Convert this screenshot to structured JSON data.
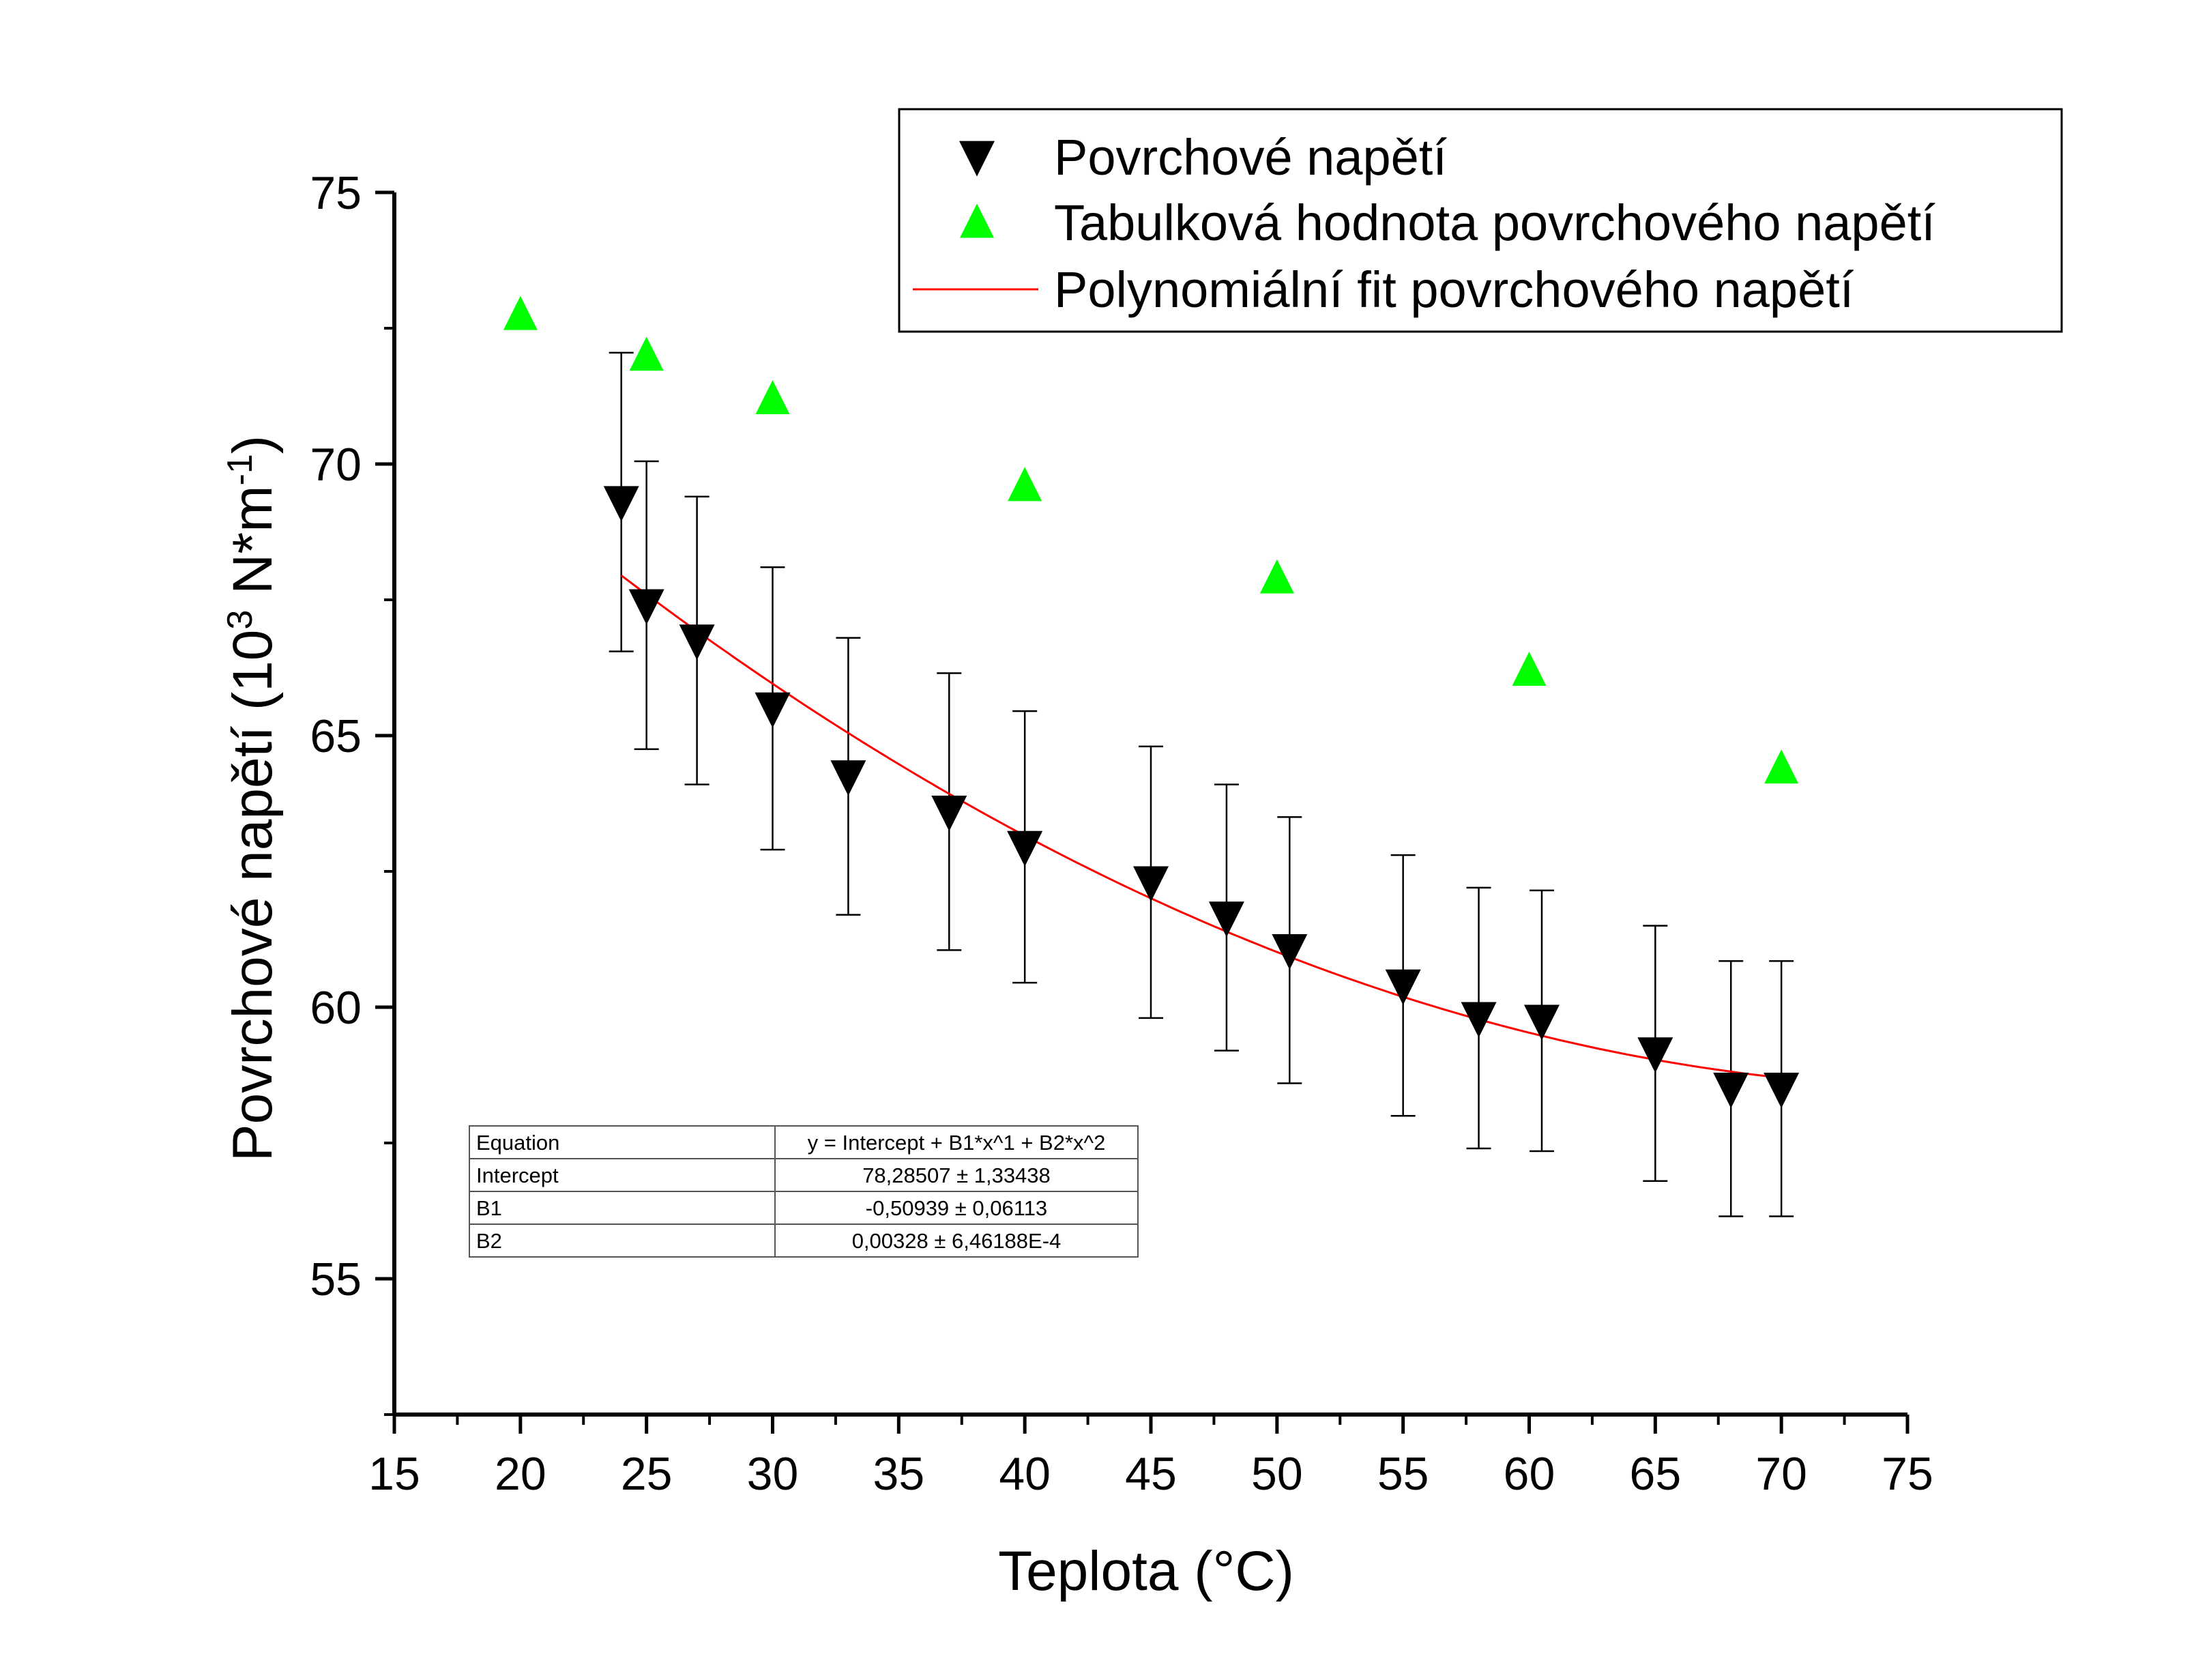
{
  "chart_data": {
    "type": "scatter",
    "xlabel": "Teplota (°C)",
    "ylabel": {
      "prefix": "Povrchové napětí (10",
      "sup1": "3",
      "middle": " N*m",
      "sup2": "-1",
      "suffix": ")"
    },
    "xlim": [
      15,
      75
    ],
    "ylim": [
      52.5,
      75
    ],
    "xticks": [
      "15",
      "20",
      "25",
      "30",
      "35",
      "40",
      "45",
      "50",
      "55",
      "60",
      "65",
      "70",
      "75"
    ],
    "yticks": [
      "55",
      "60",
      "65",
      "70",
      "75"
    ],
    "grid": false,
    "legend_position": "top-right",
    "series": [
      {
        "name": "Povrchové napětí",
        "marker": "triangle-down",
        "color": "#000000",
        "x": [
          24,
          25,
          27,
          30,
          33,
          37,
          40,
          45,
          48,
          50.5,
          55,
          58,
          60.5,
          65,
          68,
          70
        ],
        "y": [
          69.3,
          67.4,
          66.75,
          65.5,
          64.25,
          63.6,
          62.95,
          62.3,
          61.65,
          61.05,
          60.4,
          59.8,
          59.75,
          59.15,
          58.5,
          58.5
        ],
        "error": [
          2.75,
          2.65,
          2.65,
          2.6,
          2.55,
          2.55,
          2.5,
          2.5,
          2.45,
          2.45,
          2.4,
          2.4,
          2.4,
          2.35,
          2.35,
          2.35
        ]
      },
      {
        "name": "Tabulková hodnota povrchového napětí",
        "marker": "triangle-up",
        "color": "#00ff00",
        "x": [
          20,
          25,
          30,
          40,
          50,
          60,
          70
        ],
        "y": [
          72.75,
          72.0,
          71.2,
          69.6,
          67.9,
          66.2,
          64.4
        ]
      },
      {
        "name": "Polynomiální fit povrchového napětí",
        "type": "line",
        "color": "#ff0000",
        "equation": {
          "intercept": 78.28507,
          "b1": -0.50939,
          "b2": 0.00328
        },
        "x_range": [
          24,
          70
        ]
      }
    ],
    "fit_table": [
      [
        "Equation",
        "y = Intercept + B1*x^1 + B2*x^2"
      ],
      [
        "Intercept",
        "78,28507 ± 1,33438"
      ],
      [
        "B1",
        "-0,50939 ± 0,06113"
      ],
      [
        "B2",
        "0,00328 ± 6,46188E-4"
      ]
    ]
  }
}
